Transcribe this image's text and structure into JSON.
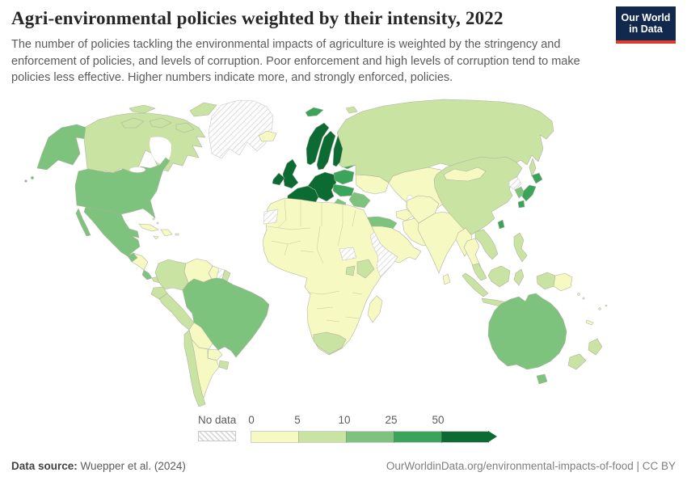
{
  "header": {
    "title": "Agri-environmental policies weighted by their intensity, 2022",
    "subtitle": "The number of policies tackling the environmental impacts of agriculture is weighted by the stringency and enforcement of policies, and levels of corruption. Poor enforcement and high levels of corruption tend to make policies less effective. Higher numbers indicate more, and strongly enforced, policies.",
    "logo_line1": "Our World",
    "logo_line2": "in Data",
    "logo_background": "#12294d",
    "logo_accent": "#dc3b2e"
  },
  "legend": {
    "no_data_label": "No data",
    "ticks": [
      "0",
      "5",
      "10",
      "25",
      "50"
    ]
  },
  "footer": {
    "source_label": "Data source:",
    "source_value": " Wuepper et al. (2024)",
    "right_text": "OurWorldinData.org/environmental-impacts-of-food | CC BY"
  },
  "chart_data": {
    "type": "choropleth_map",
    "title": "Agri-environmental policies weighted by their intensity",
    "year": "2022",
    "legend_position": "bottom",
    "scale_breaks": [
      0,
      5,
      10,
      25,
      50
    ],
    "legend_bins": [
      {
        "id": "0-5",
        "label": "0–5",
        "color": "#f6f9c1"
      },
      {
        "id": "5-10",
        "label": "5–10",
        "color": "#c9e3a2"
      },
      {
        "id": "10-25",
        "label": "10–25",
        "color": "#7dc37e"
      },
      {
        "id": "25-50",
        "label": "25–50",
        "color": "#3aa45a"
      },
      {
        "id": "50+",
        "label": "50+",
        "color": "#0c6b33"
      },
      {
        "id": "no-data",
        "label": "No data",
        "color": "hatch"
      }
    ],
    "regions": [
      {
        "id": "alaska",
        "name": "Alaska (United States)",
        "bin": "10-25"
      },
      {
        "id": "canada",
        "name": "Canada",
        "bin": "5-10"
      },
      {
        "id": "arctic-islands",
        "name": "Canadian Arctic islands",
        "bin": "5-10"
      },
      {
        "id": "ellesmere",
        "name": "Ellesmere Island",
        "bin": "5-10"
      },
      {
        "id": "greenland",
        "name": "Greenland",
        "bin": "no-data"
      },
      {
        "id": "iceland",
        "name": "Iceland",
        "bin": "0-5"
      },
      {
        "id": "usa",
        "name": "United States",
        "bin": "10-25"
      },
      {
        "id": "baja",
        "name": "Mexico (Baja California)",
        "bin": "10-25"
      },
      {
        "id": "mexico",
        "name": "Mexico",
        "bin": "10-25"
      },
      {
        "id": "guatemala",
        "name": "Guatemala",
        "bin": "10-25"
      },
      {
        "id": "honduras-nicaragua",
        "name": "Honduras / Nicaragua",
        "bin": "0-5"
      },
      {
        "id": "costa-rica",
        "name": "Costa Rica",
        "bin": "10-25"
      },
      {
        "id": "panama",
        "name": "Panama",
        "bin": "5-10"
      },
      {
        "id": "cuba",
        "name": "Cuba",
        "bin": "0-5"
      },
      {
        "id": "hispaniola",
        "name": "Haiti / Dominican Republic",
        "bin": "0-5"
      },
      {
        "id": "jamaica",
        "name": "Jamaica",
        "bin": "0-5"
      },
      {
        "id": "puerto-rico",
        "name": "Puerto Rico",
        "bin": "0-5"
      },
      {
        "id": "colombia",
        "name": "Colombia",
        "bin": "5-10"
      },
      {
        "id": "venezuela",
        "name": "Venezuela",
        "bin": "0-5"
      },
      {
        "id": "guyana",
        "name": "Guyana",
        "bin": "0-5"
      },
      {
        "id": "suriname",
        "name": "Suriname",
        "bin": "no-data"
      },
      {
        "id": "french-guiana",
        "name": "French Guiana",
        "bin": "5-10"
      },
      {
        "id": "brazil",
        "name": "Brazil",
        "bin": "10-25"
      },
      {
        "id": "ecuador",
        "name": "Ecuador",
        "bin": "5-10"
      },
      {
        "id": "peru",
        "name": "Peru",
        "bin": "5-10"
      },
      {
        "id": "bolivia",
        "name": "Bolivia",
        "bin": "0-5"
      },
      {
        "id": "paraguay",
        "name": "Paraguay",
        "bin": "0-5"
      },
      {
        "id": "chile",
        "name": "Chile",
        "bin": "5-10"
      },
      {
        "id": "argentina",
        "name": "Argentina",
        "bin": "0-5"
      },
      {
        "id": "uruguay",
        "name": "Uruguay",
        "bin": "5-10"
      },
      {
        "id": "norway",
        "name": "Norway",
        "bin": "50+"
      },
      {
        "id": "sweden",
        "name": "Sweden",
        "bin": "50+"
      },
      {
        "id": "finland",
        "name": "Finland",
        "bin": "50+"
      },
      {
        "id": "denmark",
        "name": "Denmark",
        "bin": "50+"
      },
      {
        "id": "svalbard",
        "name": "Svalbard",
        "bin": "25-50"
      },
      {
        "id": "franz-josef",
        "name": "Franz Josef Land",
        "bin": "5-10"
      },
      {
        "id": "uk",
        "name": "United Kingdom",
        "bin": "50+"
      },
      {
        "id": "ireland",
        "name": "Ireland",
        "bin": "50+"
      },
      {
        "id": "france",
        "name": "France",
        "bin": "50+"
      },
      {
        "id": "germany-central",
        "name": "Germany / Benelux / Alps",
        "bin": "50+"
      },
      {
        "id": "italy",
        "name": "Italy",
        "bin": "50+"
      },
      {
        "id": "sicily",
        "name": "Sicily (Italy)",
        "bin": "50+"
      },
      {
        "id": "sardinia",
        "name": "Sardinia (Italy)",
        "bin": "50+"
      },
      {
        "id": "iberia",
        "name": "Spain / Portugal",
        "bin": "50+"
      },
      {
        "id": "poland",
        "name": "Poland",
        "bin": "25-50"
      },
      {
        "id": "baltics",
        "name": "Baltic states",
        "bin": "25-50"
      },
      {
        "id": "czech-hungary",
        "name": "Czechia / Slovakia / Hungary",
        "bin": "25-50"
      },
      {
        "id": "romania-bulgaria",
        "name": "Romania / Bulgaria",
        "bin": "10-25"
      },
      {
        "id": "balkans",
        "name": "Western Balkans",
        "bin": "10-25"
      },
      {
        "id": "greece",
        "name": "Greece",
        "bin": "10-25"
      },
      {
        "id": "belarus",
        "name": "Belarus",
        "bin": "0-5"
      },
      {
        "id": "ukraine",
        "name": "Ukraine",
        "bin": "0-5"
      },
      {
        "id": "russia",
        "name": "Russia",
        "bin": "5-10"
      },
      {
        "id": "sakhalin",
        "name": "Sakhalin (Russia)",
        "bin": "5-10"
      },
      {
        "id": "kazakhstan-central-asia",
        "name": "Kazakhstan / Central Asia",
        "bin": "0-5"
      },
      {
        "id": "caucasus",
        "name": "Caucasus",
        "bin": "0-5"
      },
      {
        "id": "turkey",
        "name": "Turkey",
        "bin": "10-25"
      },
      {
        "id": "iran",
        "name": "Iran",
        "bin": "0-5"
      },
      {
        "id": "arabia",
        "name": "Arabian Peninsula / Middle East",
        "bin": "0-5"
      },
      {
        "id": "africa",
        "name": "Africa (most countries)",
        "bin": "0-5"
      },
      {
        "id": "western-sahara",
        "name": "Western Sahara",
        "bin": "no-data"
      },
      {
        "id": "south-sudan",
        "name": "South Sudan",
        "bin": "no-data"
      },
      {
        "id": "somalia-horn",
        "name": "Somalia / Eritrea / Djibouti",
        "bin": "no-data"
      },
      {
        "id": "kenya",
        "name": "Kenya",
        "bin": "5-10"
      },
      {
        "id": "uganda",
        "name": "Uganda",
        "bin": "5-10"
      },
      {
        "id": "south-africa",
        "name": "South Africa",
        "bin": "5-10"
      },
      {
        "id": "madagascar",
        "name": "Madagascar",
        "bin": "0-5"
      },
      {
        "id": "pakistan-afghanistan",
        "name": "Pakistan / Afghanistan",
        "bin": "0-5"
      },
      {
        "id": "india",
        "name": "India",
        "bin": "0-5"
      },
      {
        "id": "sri-lanka",
        "name": "Sri Lanka",
        "bin": "0-5"
      },
      {
        "id": "china",
        "name": "China",
        "bin": "5-10"
      },
      {
        "id": "mongolia",
        "name": "Mongolia",
        "bin": "0-5"
      },
      {
        "id": "myanmar",
        "name": "Myanmar",
        "bin": "0-5"
      },
      {
        "id": "thailand",
        "name": "Thailand",
        "bin": "0-5"
      },
      {
        "id": "vietnam-laos",
        "name": "Vietnam / Laos / Cambodia",
        "bin": "5-10"
      },
      {
        "id": "malaysia",
        "name": "Malaysia",
        "bin": "5-10"
      },
      {
        "id": "sumatra",
        "name": "Indonesia (Sumatra)",
        "bin": "5-10"
      },
      {
        "id": "java",
        "name": "Indonesia (Java)",
        "bin": "5-10"
      },
      {
        "id": "borneo",
        "name": "Borneo",
        "bin": "5-10"
      },
      {
        "id": "sulawesi",
        "name": "Indonesia (Sulawesi)",
        "bin": "5-10"
      },
      {
        "id": "philippines",
        "name": "Philippines",
        "bin": "5-10"
      },
      {
        "id": "taiwan",
        "name": "Taiwan",
        "bin": "25-50"
      },
      {
        "id": "north-korea",
        "name": "North Korea",
        "bin": "no-data"
      },
      {
        "id": "south-korea",
        "name": "South Korea",
        "bin": "10-25"
      },
      {
        "id": "japan-hokkaido",
        "name": "Japan (Hokkaido)",
        "bin": "25-50"
      },
      {
        "id": "japan-honshu",
        "name": "Japan (Honshu)",
        "bin": "25-50"
      },
      {
        "id": "japan-kyushu",
        "name": "Japan (Kyushu/Shikoku)",
        "bin": "25-50"
      },
      {
        "id": "indonesia-papua",
        "name": "Indonesia (Papua)",
        "bin": "5-10"
      },
      {
        "id": "png-east",
        "name": "Papua New Guinea",
        "bin": "0-5"
      },
      {
        "id": "australia",
        "name": "Australia",
        "bin": "10-25"
      },
      {
        "id": "tasmania",
        "name": "Tasmania (Australia)",
        "bin": "10-25"
      },
      {
        "id": "nz-north",
        "name": "New Zealand (North Island)",
        "bin": "5-10"
      },
      {
        "id": "nz-south",
        "name": "New Zealand (South Island)",
        "bin": "5-10"
      },
      {
        "id": "aleutians",
        "name": "Aleutian Islands",
        "bin": "10-25"
      },
      {
        "id": "pacific-islands",
        "name": "Pacific islands",
        "bin": "0-5"
      },
      {
        "id": "new-caledonia",
        "name": "New Caledonia",
        "bin": "0-5"
      },
      {
        "id": "bahamas",
        "name": "Bahamas / small Caribbean islands",
        "bin": "0-5"
      }
    ]
  }
}
